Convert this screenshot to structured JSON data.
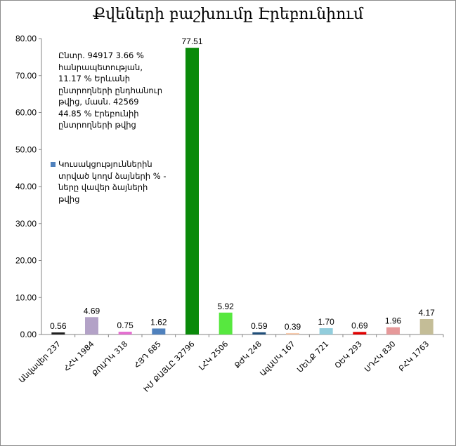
{
  "chart_data": {
    "type": "bar",
    "title": "Քվեների բաշխումը Էրեբունիում",
    "categories": [
      "Անվավեր 237",
      "ՀՀԿ 1984",
      "ՔՈԱԴԿ 318",
      "ՀՅԴ 685",
      "ԻՄ ՔԱՅԼԸ 32796",
      "ԼՀԿ 2506",
      "ՔԺԿ 248",
      "ԱզԱՄԿ 167",
      "ՄԵՆՔ 721",
      "ՕԵԿ 293",
      "ՍԴՀԿ 830",
      "ԲՀԿ 1763"
    ],
    "values": [
      0.56,
      4.69,
      0.75,
      1.62,
      77.51,
      5.92,
      0.59,
      0.39,
      1.7,
      0.69,
      1.96,
      4.17
    ],
    "value_labels": [
      "0.56",
      "4.69",
      "0.75",
      "1.62",
      "77.51",
      "5.92",
      "0.59",
      "0.39",
      "1.70",
      "0.69",
      "1.96",
      "4.17"
    ],
    "colors": [
      "#1f1f1f",
      "#b3a2c7",
      "#e46fd0",
      "#4f81bd",
      "#0a8a0a",
      "#57e83f",
      "#1f4e79",
      "#f7caac",
      "#92cddc",
      "#e00000",
      "#e6999a",
      "#c4bd97"
    ],
    "ylim": [
      0,
      80
    ],
    "yticks": [
      "0.00",
      "10.00",
      "20.00",
      "30.00",
      "40.00",
      "50.00",
      "60.00",
      "70.00",
      "80.00"
    ],
    "grid": false,
    "note": "Ընտր. 94917 3.66 % հանրապետության, 11.17 % Երևանի ընտրողների ընդհանուր թվից, մասն. 42569 44.85 % Էրեբունիի ընտրողների թվից",
    "legend": {
      "label": "Կուսակցություններին տրված կողմ ձայների % - ները վավեր ձայների թվից",
      "color": "#4f81bd",
      "position": "left"
    }
  }
}
